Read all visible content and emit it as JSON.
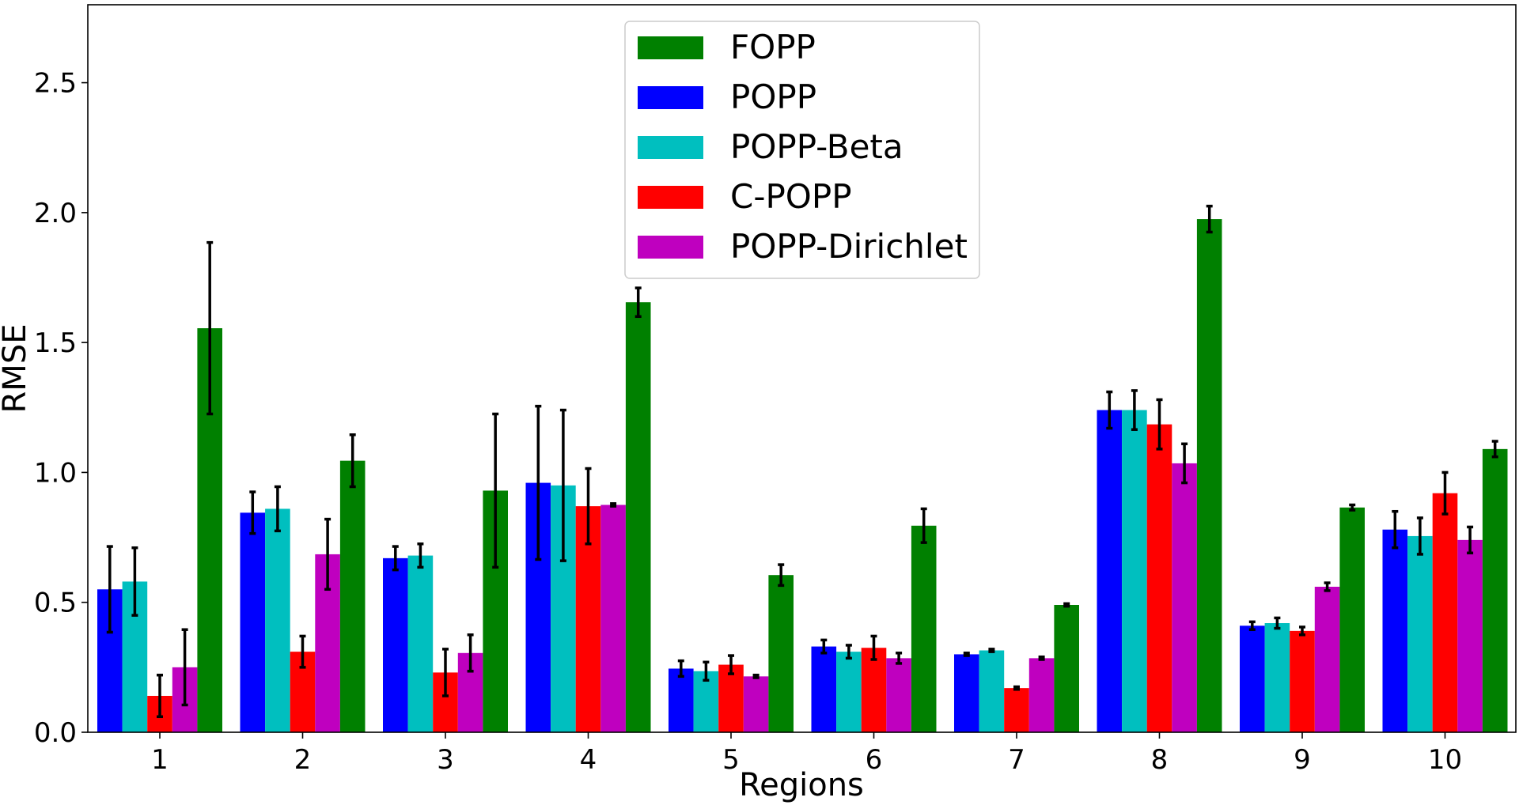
{
  "chart_data": {
    "type": "bar",
    "xlabel": "Regions",
    "ylabel": "RMSE",
    "ylim": [
      0,
      2.8
    ],
    "yticks": [
      "0.0",
      "0.5",
      "1.0",
      "1.5",
      "2.0",
      "2.5"
    ],
    "categories": [
      "1",
      "2",
      "3",
      "4",
      "5",
      "6",
      "7",
      "8",
      "9",
      "10"
    ],
    "legend_position": "top-center",
    "grid": false,
    "series": [
      {
        "name": "POPP",
        "color": "#0000ff",
        "values": [
          0.55,
          0.845,
          0.67,
          0.96,
          0.245,
          0.33,
          0.3,
          1.24,
          0.41,
          0.78
        ],
        "errors": [
          0.165,
          0.08,
          0.045,
          0.295,
          0.03,
          0.025,
          0.005,
          0.07,
          0.015,
          0.07
        ]
      },
      {
        "name": "POPP-Beta",
        "color": "#00bfbf",
        "values": [
          0.58,
          0.86,
          0.68,
          0.95,
          0.235,
          0.31,
          0.315,
          1.24,
          0.42,
          0.755
        ],
        "errors": [
          0.13,
          0.085,
          0.045,
          0.29,
          0.035,
          0.025,
          0.005,
          0.075,
          0.02,
          0.07
        ]
      },
      {
        "name": "C-POPP",
        "color": "#ff0000",
        "values": [
          0.14,
          0.31,
          0.23,
          0.87,
          0.26,
          0.325,
          0.17,
          1.185,
          0.39,
          0.92
        ],
        "errors": [
          0.08,
          0.06,
          0.09,
          0.145,
          0.035,
          0.045,
          0.005,
          0.095,
          0.015,
          0.08
        ]
      },
      {
        "name": "POPP-Dirichlet",
        "color": "#bf00bf",
        "values": [
          0.25,
          0.685,
          0.305,
          0.875,
          0.215,
          0.285,
          0.285,
          1.035,
          0.56,
          0.74
        ],
        "errors": [
          0.145,
          0.135,
          0.07,
          0.005,
          0.005,
          0.02,
          0.005,
          0.075,
          0.015,
          0.05
        ]
      },
      {
        "name": "FOPP",
        "color": "#008000",
        "values": [
          1.555,
          1.045,
          0.93,
          1.655,
          0.605,
          0.795,
          0.49,
          1.975,
          0.865,
          1.09
        ],
        "errors": [
          0.33,
          0.1,
          0.295,
          0.055,
          0.04,
          0.065,
          0.005,
          0.05,
          0.01,
          0.03
        ]
      }
    ],
    "legend_order": [
      "FOPP",
      "POPP",
      "POPP-Beta",
      "C-POPP",
      "POPP-Dirichlet"
    ]
  }
}
